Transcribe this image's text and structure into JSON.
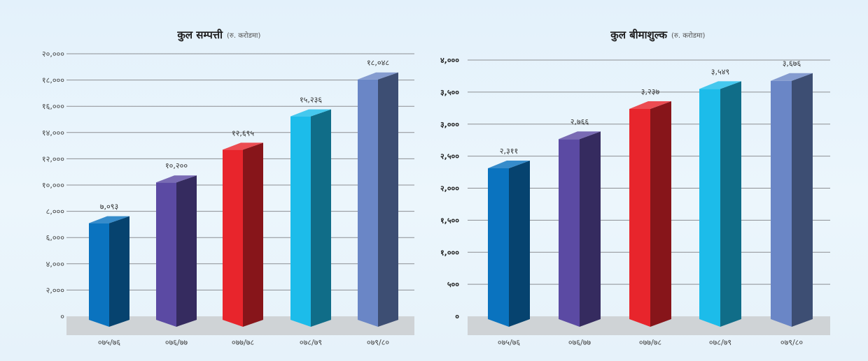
{
  "chart_data": [
    {
      "type": "bar",
      "title": "कुल सम्पत्ती",
      "subtitle": "(रु. करोडमा)",
      "categories": [
        "०७५/७६",
        "०७६/७७",
        "०७७/७८",
        "०७८/७९",
        "०७९/८०"
      ],
      "values": [
        7093,
        10200,
        12695,
        15236,
        18048
      ],
      "value_labels": [
        "७,०९३",
        "१०,२००",
        "१२,६९५",
        "१५,२३६",
        "१८,०४८"
      ],
      "ylim": [
        0,
        20000
      ],
      "yticks": [
        0,
        2000,
        4000,
        6000,
        8000,
        10000,
        12000,
        14000,
        16000,
        18000,
        20000
      ],
      "ytick_labels": [
        "०",
        "२,०००",
        "४,०००",
        "६,०००",
        "८,०००",
        "१०,०००",
        "१२,०००",
        "१४,०००",
        "१६,०००",
        "१८,०००",
        "२०,०००"
      ],
      "grid": true,
      "bar_colors": [
        "#0a73bf",
        "#5b4aa3",
        "#e8252c",
        "#1cbcea",
        "#6a86c6"
      ]
    },
    {
      "type": "bar",
      "title": "कुल बीमाशुल्क",
      "subtitle": "(रु. करोडमा)",
      "categories": [
        "०७५/७६",
        "०७६/७७",
        "०७७/७८",
        "०७८/७९",
        "०७९/८०"
      ],
      "values": [
        2311,
        2766,
        3237,
        3549,
        3676
      ],
      "value_labels": [
        "२,३११",
        "२,७६६",
        "३,२३७",
        "३,५४९",
        "३,६७६"
      ],
      "ylim": [
        0,
        4000
      ],
      "yticks": [
        0,
        500,
        1000,
        1500,
        2000,
        2500,
        3000,
        3500,
        4000
      ],
      "ytick_labels": [
        "०",
        "५००",
        "१,०००",
        "१,५००",
        "२,०००",
        "२,५००",
        "३,०००",
        "३,५००",
        "४,०००"
      ],
      "grid": true,
      "bar_colors": [
        "#0a73bf",
        "#5b4aa3",
        "#e8252c",
        "#1cbcea",
        "#6a86c6"
      ]
    }
  ]
}
